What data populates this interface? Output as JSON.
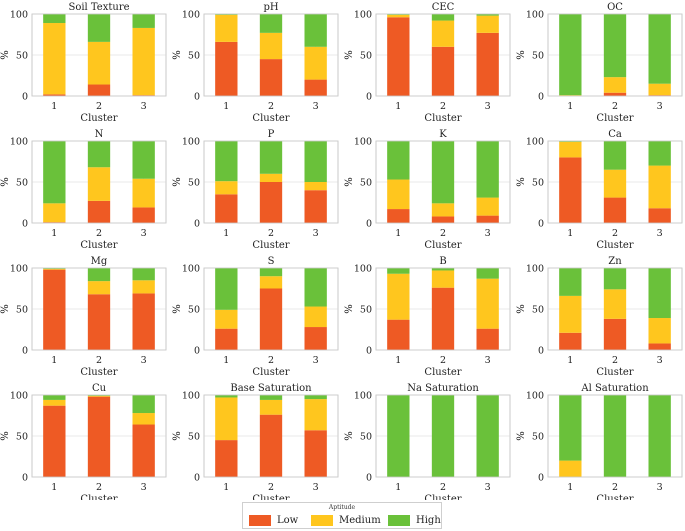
{
  "colors": {
    "Low": "#ee5a24",
    "Medium": "#ffc61e",
    "High": "#6ac13a"
  },
  "legend": {
    "title": "Aptitude",
    "items": [
      "Low",
      "Medium",
      "High"
    ]
  },
  "chart_data": [
    {
      "type": "bar",
      "stacked": true,
      "title": "Soil Texture",
      "xlabel": "Cluster",
      "ylabel": "%",
      "categories": [
        "1",
        "2",
        "3"
      ],
      "ylim": [
        0,
        100
      ],
      "yticks": [
        0,
        50,
        100
      ],
      "series": [
        {
          "name": "Low",
          "values": [
            2,
            14,
            1
          ]
        },
        {
          "name": "Medium",
          "values": [
            87,
            52,
            82
          ]
        },
        {
          "name": "High",
          "values": [
            11,
            34,
            17
          ]
        }
      ]
    },
    {
      "type": "bar",
      "stacked": true,
      "title": "pH",
      "xlabel": "",
      "ylabel": "",
      "categories": [
        "1",
        "2",
        "3"
      ],
      "ylim": [
        0,
        100
      ],
      "yticks": [
        0,
        50,
        100
      ],
      "series": [
        {
          "name": "Low",
          "values": [
            66,
            45,
            20
          ]
        },
        {
          "name": "Medium",
          "values": [
            33,
            32,
            40
          ]
        },
        {
          "name": "High",
          "values": [
            1,
            23,
            40
          ]
        }
      ]
    },
    {
      "type": "bar",
      "stacked": true,
      "title": "CEC",
      "xlabel": "",
      "ylabel": "",
      "categories": [
        "1",
        "2",
        "3"
      ],
      "ylim": [
        0,
        100
      ],
      "yticks": [
        0,
        50,
        100
      ],
      "series": [
        {
          "name": "Low",
          "values": [
            96,
            60,
            77
          ]
        },
        {
          "name": "Medium",
          "values": [
            3,
            32,
            21
          ]
        },
        {
          "name": "High",
          "values": [
            1,
            8,
            2
          ]
        }
      ]
    },
    {
      "type": "bar",
      "stacked": true,
      "title": "OC",
      "xlabel": "",
      "ylabel": "",
      "categories": [
        "1",
        "2",
        "3"
      ],
      "ylim": [
        0,
        100
      ],
      "yticks": [
        0,
        50,
        100
      ],
      "series": [
        {
          "name": "Low",
          "values": [
            0,
            4,
            1
          ]
        },
        {
          "name": "Medium",
          "values": [
            1,
            19,
            14
          ]
        },
        {
          "name": "High",
          "values": [
            99,
            77,
            85
          ]
        }
      ]
    },
    {
      "type": "bar",
      "stacked": true,
      "title": "N",
      "xlabel": "Cluster",
      "ylabel": "%",
      "categories": [
        "1",
        "2",
        "3"
      ],
      "ylim": [
        0,
        100
      ],
      "yticks": [
        0,
        50,
        100
      ],
      "series": [
        {
          "name": "Low",
          "values": [
            1,
            27,
            19
          ]
        },
        {
          "name": "Medium",
          "values": [
            23,
            41,
            35
          ]
        },
        {
          "name": "High",
          "values": [
            76,
            32,
            46
          ]
        }
      ]
    },
    {
      "type": "bar",
      "stacked": true,
      "title": "P",
      "xlabel": "",
      "ylabel": "",
      "categories": [
        "1",
        "2",
        "3"
      ],
      "ylim": [
        0,
        100
      ],
      "yticks": [
        0,
        50,
        100
      ],
      "series": [
        {
          "name": "Low",
          "values": [
            35,
            50,
            40
          ]
        },
        {
          "name": "Medium",
          "values": [
            16,
            10,
            10
          ]
        },
        {
          "name": "High",
          "values": [
            49,
            40,
            50
          ]
        }
      ]
    },
    {
      "type": "bar",
      "stacked": true,
      "title": "K",
      "xlabel": "",
      "ylabel": "",
      "categories": [
        "1",
        "2",
        "3"
      ],
      "ylim": [
        0,
        100
      ],
      "yticks": [
        0,
        50,
        100
      ],
      "series": [
        {
          "name": "Low",
          "values": [
            17,
            8,
            9
          ]
        },
        {
          "name": "Medium",
          "values": [
            36,
            16,
            22
          ]
        },
        {
          "name": "High",
          "values": [
            47,
            76,
            69
          ]
        }
      ]
    },
    {
      "type": "bar",
      "stacked": true,
      "title": "Ca",
      "xlabel": "",
      "ylabel": "",
      "categories": [
        "1",
        "2",
        "3"
      ],
      "ylim": [
        0,
        100
      ],
      "yticks": [
        0,
        50,
        100
      ],
      "series": [
        {
          "name": "Low",
          "values": [
            80,
            31,
            18
          ]
        },
        {
          "name": "Medium",
          "values": [
            19,
            34,
            52
          ]
        },
        {
          "name": "High",
          "values": [
            1,
            35,
            30
          ]
        }
      ]
    },
    {
      "type": "bar",
      "stacked": true,
      "title": "Mg",
      "xlabel": "Cluster",
      "ylabel": "%",
      "categories": [
        "1",
        "2",
        "3"
      ],
      "ylim": [
        0,
        100
      ],
      "yticks": [
        0,
        50,
        100
      ],
      "series": [
        {
          "name": "Low",
          "values": [
            98,
            68,
            69
          ]
        },
        {
          "name": "Medium",
          "values": [
            1,
            16,
            16
          ]
        },
        {
          "name": "High",
          "values": [
            1,
            16,
            15
          ]
        }
      ]
    },
    {
      "type": "bar",
      "stacked": true,
      "title": "S",
      "xlabel": "",
      "ylabel": "",
      "categories": [
        "1",
        "2",
        "3"
      ],
      "ylim": [
        0,
        100
      ],
      "yticks": [
        0,
        50,
        100
      ],
      "series": [
        {
          "name": "Low",
          "values": [
            26,
            75,
            28
          ]
        },
        {
          "name": "Medium",
          "values": [
            23,
            15,
            25
          ]
        },
        {
          "name": "High",
          "values": [
            51,
            10,
            47
          ]
        }
      ]
    },
    {
      "type": "bar",
      "stacked": true,
      "title": "B",
      "xlabel": "",
      "ylabel": "",
      "categories": [
        "1",
        "2",
        "3"
      ],
      "ylim": [
        0,
        100
      ],
      "yticks": [
        0,
        50,
        100
      ],
      "series": [
        {
          "name": "Low",
          "values": [
            37,
            76,
            26
          ]
        },
        {
          "name": "Medium",
          "values": [
            56,
            21,
            61
          ]
        },
        {
          "name": "High",
          "values": [
            7,
            3,
            13
          ]
        }
      ]
    },
    {
      "type": "bar",
      "stacked": true,
      "title": "Zn",
      "xlabel": "",
      "ylabel": "",
      "categories": [
        "1",
        "2",
        "3"
      ],
      "ylim": [
        0,
        100
      ],
      "yticks": [
        0,
        50,
        100
      ],
      "series": [
        {
          "name": "Low",
          "values": [
            21,
            38,
            8
          ]
        },
        {
          "name": "Medium",
          "values": [
            45,
            36,
            31
          ]
        },
        {
          "name": "High",
          "values": [
            34,
            26,
            61
          ]
        }
      ]
    },
    {
      "type": "bar",
      "stacked": true,
      "title": "Cu",
      "xlabel": "Cluster",
      "ylabel": "%",
      "categories": [
        "1",
        "2",
        "3"
      ],
      "ylim": [
        0,
        100
      ],
      "yticks": [
        0,
        50,
        100
      ],
      "series": [
        {
          "name": "Low",
          "values": [
            87,
            98,
            64
          ]
        },
        {
          "name": "Medium",
          "values": [
            7,
            1,
            14
          ]
        },
        {
          "name": "High",
          "values": [
            6,
            1,
            22
          ]
        }
      ]
    },
    {
      "type": "bar",
      "stacked": true,
      "title": "Base Saturation",
      "xlabel": "",
      "ylabel": "",
      "categories": [
        "1",
        "2",
        "3"
      ],
      "ylim": [
        0,
        100
      ],
      "yticks": [
        0,
        50,
        100
      ],
      "series": [
        {
          "name": "Low",
          "values": [
            45,
            76,
            57
          ]
        },
        {
          "name": "Medium",
          "values": [
            52,
            18,
            38
          ]
        },
        {
          "name": "High",
          "values": [
            3,
            6,
            5
          ]
        }
      ]
    },
    {
      "type": "bar",
      "stacked": true,
      "title": "Na Saturation",
      "xlabel": "",
      "ylabel": "",
      "categories": [
        "1",
        "2",
        "3"
      ],
      "ylim": [
        0,
        100
      ],
      "yticks": [
        0,
        50,
        100
      ],
      "series": [
        {
          "name": "Low",
          "values": [
            0,
            0,
            0
          ]
        },
        {
          "name": "Medium",
          "values": [
            0,
            0,
            0
          ]
        },
        {
          "name": "High",
          "values": [
            100,
            100,
            100
          ]
        }
      ]
    },
    {
      "type": "bar",
      "stacked": true,
      "title": "Al Saturation",
      "xlabel": "",
      "ylabel": "",
      "categories": [
        "1",
        "2",
        "3"
      ],
      "ylim": [
        0,
        100
      ],
      "yticks": [
        0,
        50,
        100
      ],
      "series": [
        {
          "name": "Low",
          "values": [
            0,
            0,
            0
          ]
        },
        {
          "name": "Medium",
          "values": [
            20,
            0,
            0
          ]
        },
        {
          "name": "High",
          "values": [
            80,
            100,
            100
          ]
        }
      ]
    }
  ]
}
